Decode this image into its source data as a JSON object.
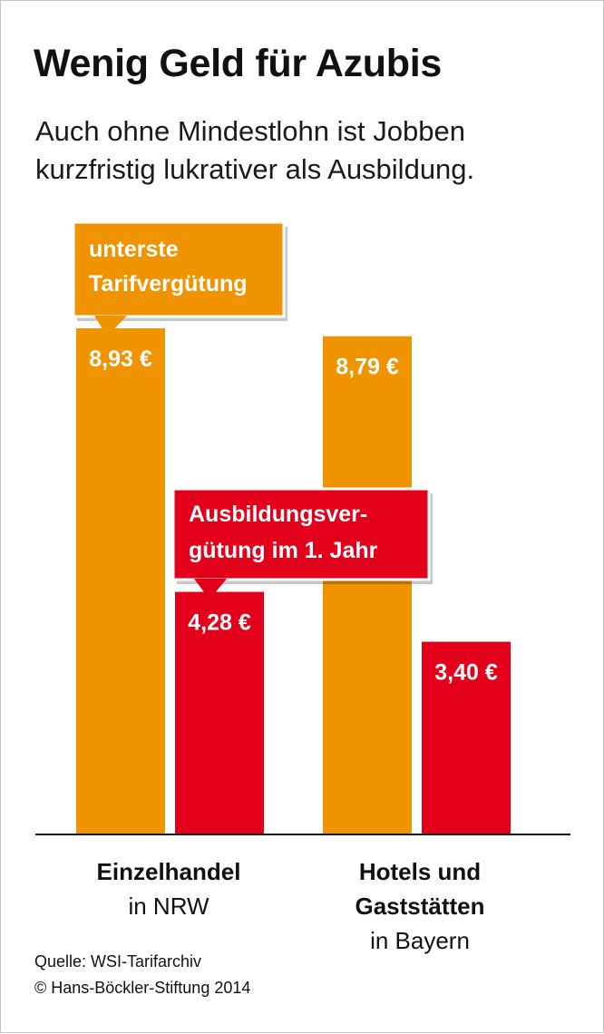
{
  "title": "Wenig Geld für Azubis",
  "subtitle": [
    "Auch ohne Mindestlohn ist Jobben",
    "kurzfristig lukrativer als Ausbildung."
  ],
  "chart_data": {
    "type": "bar",
    "title": "Wenig Geld für Azubis",
    "subtitle": "Auch ohne Mindestlohn ist Jobben kurzfristig lukrativer als Ausbildung.",
    "categories": [
      {
        "label_bold": "Einzelhandel",
        "label_regular": [
          "in NRW"
        ]
      },
      {
        "label_bold": "Hotels und Gaststätten",
        "label_bold_lines": [
          "Hotels und",
          "Gaststätten"
        ],
        "label_regular": [
          "in Bayern"
        ]
      }
    ],
    "series": [
      {
        "name": "unterste Tarifvergütung",
        "name_lines": [
          "unterste",
          "Tarifvergütung"
        ],
        "color": "#ef9400",
        "values": [
          8.93,
          8.79
        ],
        "value_labels": [
          "8,93 €",
          "8,79 €"
        ]
      },
      {
        "name": "Ausbildungsvergütung im 1. Jahr",
        "name_lines": [
          "Ausbildungsver-",
          "gütung im 1. Jahr"
        ],
        "color": "#e2001a",
        "values": [
          4.28,
          3.4
        ],
        "value_labels": [
          "4,28 €",
          "3,40 €"
        ]
      }
    ],
    "unit": "€",
    "ylim": [
      0,
      8.93
    ],
    "grid": false,
    "legend": "callouts"
  },
  "source": "Quelle: WSI-Tarifarchiv",
  "copyright": "© Hans-Böckler-Stiftung 2014"
}
